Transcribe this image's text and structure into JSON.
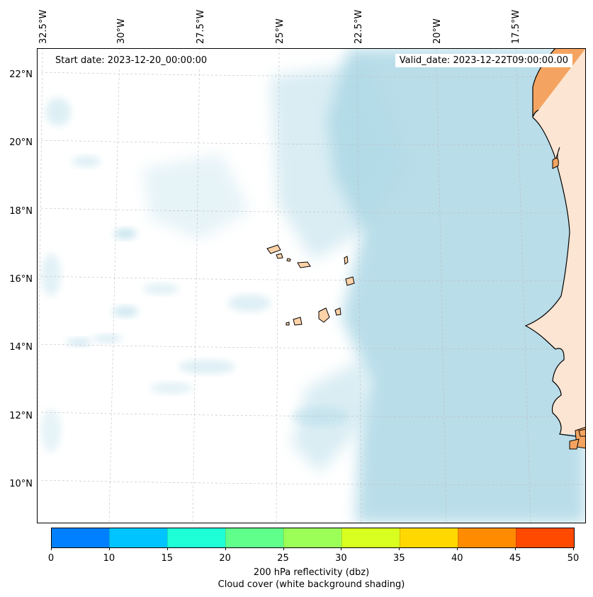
{
  "map": {
    "start_date": "Start date: 2023-12-20_00:00:00",
    "valid_date": "Valid_date: 2023-12-22T09:00:00.00",
    "lon_labels": [
      "32.5°W",
      "30°W",
      "27.5°W",
      "25°W",
      "22.5°W",
      "20°W",
      "17.5°W"
    ],
    "lat_labels": [
      "22°N",
      "20°N",
      "18°N",
      "16°N",
      "14°N",
      "12°N",
      "10°N"
    ]
  },
  "colorbar": {
    "ticks": [
      "0",
      "10",
      "15",
      "20",
      "25",
      "30",
      "35",
      "40",
      "45",
      "50"
    ],
    "colors": [
      "#0080ff",
      "#00c4ff",
      "#1effd8",
      "#60ff8c",
      "#9cff58",
      "#d8ff20",
      "#ffd800",
      "#ff8c00",
      "#ff4a00"
    ],
    "label": "200 hPa reflectivity (dbz)",
    "sublabel": "Cloud cover (white background shading)"
  },
  "colors": {
    "cloud": "#add8e6",
    "land": "#f4a460",
    "island": "#ffd2a8"
  }
}
